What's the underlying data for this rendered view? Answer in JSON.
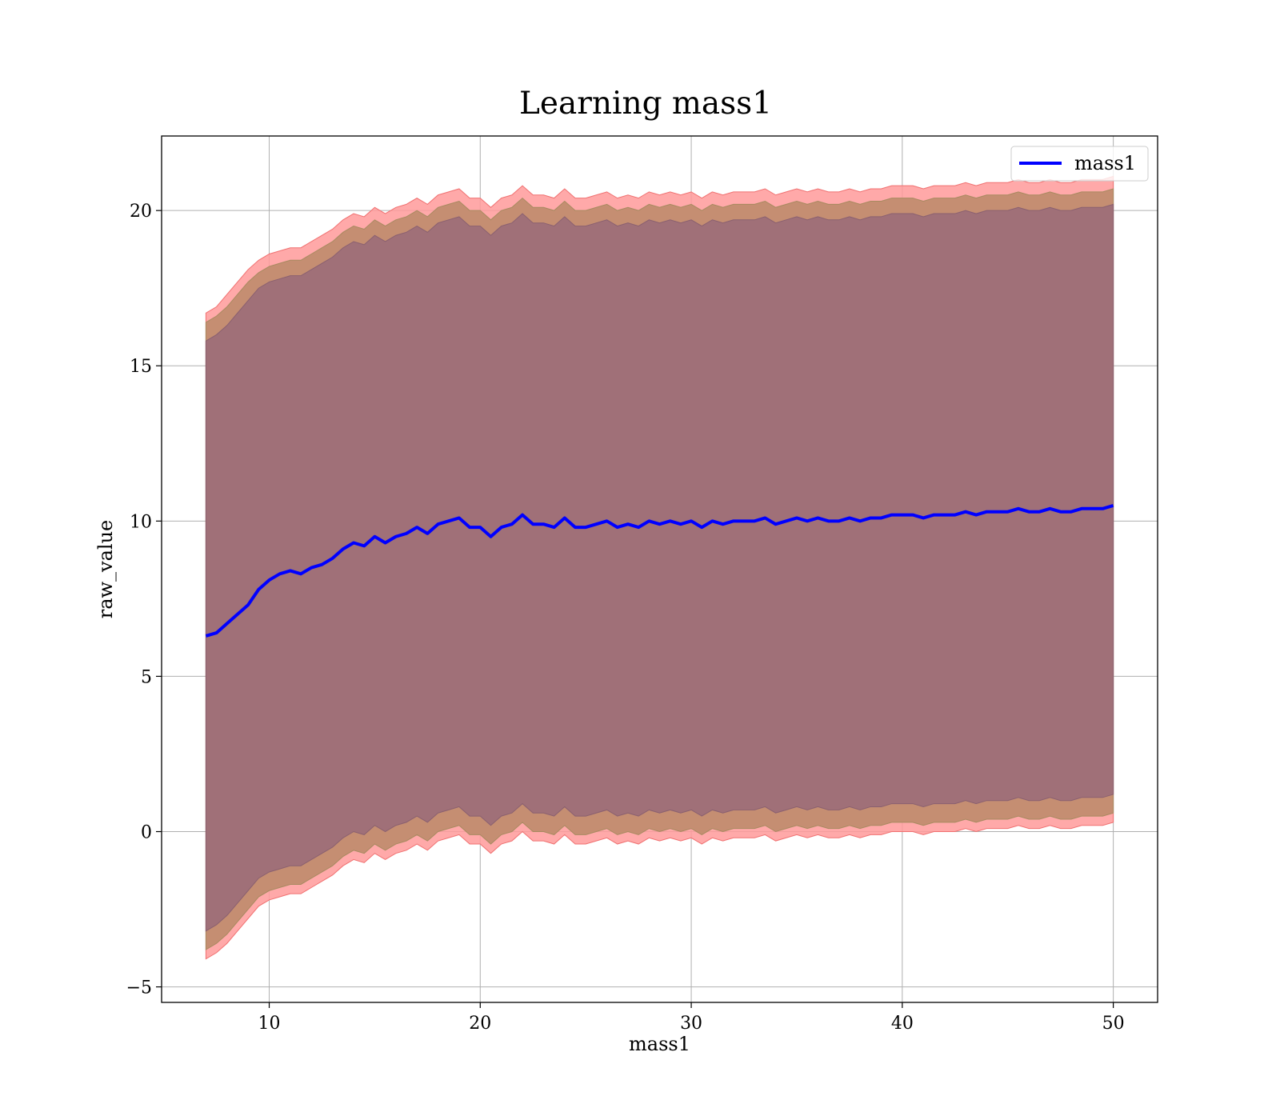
{
  "chart_data": {
    "type": "line",
    "title": "Learning mass1",
    "xlabel": "mass1",
    "ylabel": "raw_value",
    "xlim": [
      4.9,
      52.1
    ],
    "ylim": [
      -5.5,
      22.4
    ],
    "x_ticks": [
      10,
      20,
      30,
      40,
      50
    ],
    "y_ticks": [
      -5,
      0,
      5,
      10,
      15,
      20
    ],
    "x_tick_labels": [
      "10",
      "20",
      "30",
      "40",
      "50"
    ],
    "y_tick_labels": [
      "−5",
      "0",
      "5",
      "10",
      "15",
      "20"
    ],
    "grid": true,
    "legend_position": "top-right",
    "colors": {
      "line": "#0000ff",
      "band_outer": "#ff9a9a",
      "band_middle": "#c58e72",
      "band_inner": "#a07078",
      "grid": "#b0b0b0"
    },
    "x": [
      7,
      7.5,
      8,
      8.5,
      9,
      9.5,
      10,
      10.5,
      11,
      11.5,
      12,
      12.5,
      13,
      13.5,
      14,
      14.5,
      15,
      15.5,
      16,
      16.5,
      17,
      17.5,
      18,
      18.5,
      19,
      19.5,
      20,
      20.5,
      21,
      21.5,
      22,
      22.5,
      23,
      23.5,
      24,
      24.5,
      25,
      25.5,
      26,
      26.5,
      27,
      27.5,
      28,
      28.5,
      29,
      29.5,
      30,
      30.5,
      31,
      31.5,
      32,
      32.5,
      33,
      33.5,
      34,
      34.5,
      35,
      35.5,
      36,
      36.5,
      37,
      37.5,
      38,
      38.5,
      39,
      39.5,
      40,
      40.5,
      41,
      41.5,
      42,
      42.5,
      43,
      43.5,
      44,
      44.5,
      45,
      45.5,
      46,
      46.5,
      47,
      47.5,
      48,
      48.5,
      49,
      49.5,
      50
    ],
    "series": [
      {
        "name": "mass1",
        "values": [
          6.3,
          6.4,
          6.7,
          7.0,
          7.3,
          7.8,
          8.1,
          8.3,
          8.4,
          8.3,
          8.5,
          8.6,
          8.8,
          9.1,
          9.3,
          9.2,
          9.5,
          9.3,
          9.5,
          9.6,
          9.8,
          9.6,
          9.9,
          10.0,
          10.1,
          9.8,
          9.8,
          9.5,
          9.8,
          9.9,
          10.2,
          9.9,
          9.9,
          9.8,
          10.1,
          9.8,
          9.8,
          9.9,
          10.0,
          9.8,
          9.9,
          9.8,
          10.0,
          9.9,
          10.0,
          9.9,
          10.0,
          9.8,
          10.0,
          9.9,
          10.0,
          10.0,
          10.0,
          10.1,
          9.9,
          10.0,
          10.1,
          10.0,
          10.1,
          10.0,
          10.0,
          10.1,
          10.0,
          10.1,
          10.1,
          10.2,
          10.2,
          10.2,
          10.1,
          10.2,
          10.2,
          10.2,
          10.3,
          10.2,
          10.3,
          10.3,
          10.3,
          10.4,
          10.3,
          10.3,
          10.4,
          10.3,
          10.3,
          10.4,
          10.4,
          10.4,
          10.5
        ]
      }
    ],
    "bands": {
      "outer_upper": [
        16.7,
        16.9,
        17.3,
        17.7,
        18.1,
        18.4,
        18.6,
        18.7,
        18.8,
        18.8,
        19.0,
        19.2,
        19.4,
        19.7,
        19.9,
        19.8,
        20.1,
        19.9,
        20.1,
        20.2,
        20.4,
        20.2,
        20.5,
        20.6,
        20.7,
        20.4,
        20.4,
        20.1,
        20.4,
        20.5,
        20.8,
        20.5,
        20.5,
        20.4,
        20.7,
        20.4,
        20.4,
        20.5,
        20.6,
        20.4,
        20.5,
        20.4,
        20.6,
        20.5,
        20.6,
        20.5,
        20.6,
        20.4,
        20.6,
        20.5,
        20.6,
        20.6,
        20.6,
        20.7,
        20.5,
        20.6,
        20.7,
        20.6,
        20.7,
        20.6,
        20.6,
        20.7,
        20.6,
        20.7,
        20.7,
        20.8,
        20.8,
        20.8,
        20.7,
        20.8,
        20.8,
        20.8,
        20.9,
        20.8,
        20.9,
        20.9,
        20.9,
        21.0,
        20.9,
        20.9,
        21.0,
        20.9,
        20.9,
        21.0,
        21.0,
        21.0,
        21.1
      ],
      "middle_upper": [
        16.4,
        16.6,
        16.9,
        17.3,
        17.7,
        18.0,
        18.2,
        18.3,
        18.4,
        18.4,
        18.6,
        18.8,
        19.0,
        19.3,
        19.5,
        19.4,
        19.7,
        19.5,
        19.7,
        19.8,
        20.0,
        19.8,
        20.1,
        20.2,
        20.3,
        20.0,
        20.0,
        19.7,
        20.0,
        20.1,
        20.4,
        20.1,
        20.1,
        20.0,
        20.3,
        20.0,
        20.0,
        20.1,
        20.2,
        20.0,
        20.1,
        20.0,
        20.2,
        20.1,
        20.2,
        20.1,
        20.2,
        20.0,
        20.2,
        20.1,
        20.2,
        20.2,
        20.2,
        20.3,
        20.1,
        20.2,
        20.3,
        20.2,
        20.3,
        20.2,
        20.2,
        20.3,
        20.2,
        20.3,
        20.3,
        20.4,
        20.4,
        20.4,
        20.3,
        20.4,
        20.4,
        20.4,
        20.5,
        20.4,
        20.5,
        20.5,
        20.5,
        20.6,
        20.5,
        20.5,
        20.6,
        20.5,
        20.5,
        20.6,
        20.6,
        20.6,
        20.7
      ],
      "inner_upper": [
        15.8,
        16.0,
        16.3,
        16.7,
        17.1,
        17.5,
        17.7,
        17.8,
        17.9,
        17.9,
        18.1,
        18.3,
        18.5,
        18.8,
        19.0,
        18.9,
        19.2,
        19.0,
        19.2,
        19.3,
        19.5,
        19.3,
        19.6,
        19.7,
        19.8,
        19.5,
        19.5,
        19.2,
        19.5,
        19.6,
        19.9,
        19.6,
        19.6,
        19.5,
        19.8,
        19.5,
        19.5,
        19.6,
        19.7,
        19.5,
        19.6,
        19.5,
        19.7,
        19.6,
        19.7,
        19.6,
        19.7,
        19.5,
        19.7,
        19.6,
        19.7,
        19.7,
        19.7,
        19.8,
        19.6,
        19.7,
        19.8,
        19.7,
        19.8,
        19.7,
        19.7,
        19.8,
        19.7,
        19.8,
        19.8,
        19.9,
        19.9,
        19.9,
        19.8,
        19.9,
        19.9,
        19.9,
        20.0,
        19.9,
        20.0,
        20.0,
        20.0,
        20.1,
        20.0,
        20.0,
        20.1,
        20.0,
        20.0,
        20.1,
        20.1,
        20.1,
        20.2
      ],
      "inner_lower": [
        -3.2,
        -3.0,
        -2.7,
        -2.3,
        -1.9,
        -1.5,
        -1.3,
        -1.2,
        -1.1,
        -1.1,
        -0.9,
        -0.7,
        -0.5,
        -0.2,
        0.0,
        -0.1,
        0.2,
        0.0,
        0.2,
        0.3,
        0.5,
        0.3,
        0.6,
        0.7,
        0.8,
        0.5,
        0.5,
        0.2,
        0.5,
        0.6,
        0.9,
        0.6,
        0.6,
        0.5,
        0.8,
        0.5,
        0.5,
        0.6,
        0.7,
        0.5,
        0.6,
        0.5,
        0.7,
        0.6,
        0.7,
        0.6,
        0.7,
        0.5,
        0.7,
        0.6,
        0.7,
        0.7,
        0.7,
        0.8,
        0.6,
        0.7,
        0.8,
        0.7,
        0.8,
        0.7,
        0.7,
        0.8,
        0.7,
        0.8,
        0.8,
        0.9,
        0.9,
        0.9,
        0.8,
        0.9,
        0.9,
        0.9,
        1.0,
        0.9,
        1.0,
        1.0,
        1.0,
        1.1,
        1.0,
        1.0,
        1.1,
        1.0,
        1.0,
        1.1,
        1.1,
        1.1,
        1.2
      ],
      "middle_lower": [
        -3.8,
        -3.6,
        -3.3,
        -2.9,
        -2.5,
        -2.1,
        -1.9,
        -1.8,
        -1.7,
        -1.7,
        -1.5,
        -1.3,
        -1.1,
        -0.8,
        -0.6,
        -0.7,
        -0.4,
        -0.6,
        -0.4,
        -0.3,
        -0.1,
        -0.3,
        0.0,
        0.1,
        0.2,
        -0.1,
        -0.1,
        -0.4,
        -0.1,
        0.0,
        0.3,
        0.0,
        0.0,
        -0.1,
        0.2,
        -0.1,
        -0.1,
        0.0,
        0.1,
        -0.1,
        0.0,
        -0.1,
        0.1,
        0.0,
        0.1,
        0.0,
        0.1,
        -0.1,
        0.1,
        0.0,
        0.1,
        0.1,
        0.1,
        0.2,
        0.0,
        0.1,
        0.2,
        0.1,
        0.2,
        0.1,
        0.1,
        0.2,
        0.1,
        0.2,
        0.2,
        0.3,
        0.3,
        0.3,
        0.2,
        0.3,
        0.3,
        0.3,
        0.4,
        0.3,
        0.4,
        0.4,
        0.4,
        0.5,
        0.4,
        0.4,
        0.5,
        0.4,
        0.4,
        0.5,
        0.5,
        0.5,
        0.6
      ],
      "outer_lower": [
        -4.1,
        -3.9,
        -3.6,
        -3.2,
        -2.8,
        -2.4,
        -2.2,
        -2.1,
        -2.0,
        -2.0,
        -1.8,
        -1.6,
        -1.4,
        -1.1,
        -0.9,
        -1.0,
        -0.7,
        -0.9,
        -0.7,
        -0.6,
        -0.4,
        -0.6,
        -0.3,
        -0.2,
        -0.1,
        -0.4,
        -0.4,
        -0.7,
        -0.4,
        -0.3,
        0.0,
        -0.3,
        -0.3,
        -0.4,
        -0.1,
        -0.4,
        -0.4,
        -0.3,
        -0.2,
        -0.4,
        -0.3,
        -0.4,
        -0.2,
        -0.3,
        -0.2,
        -0.3,
        -0.2,
        -0.4,
        -0.2,
        -0.3,
        -0.2,
        -0.2,
        -0.2,
        -0.1,
        -0.3,
        -0.2,
        -0.1,
        -0.2,
        -0.1,
        -0.2,
        -0.2,
        -0.1,
        -0.2,
        -0.1,
        -0.1,
        0.0,
        0.0,
        0.0,
        -0.1,
        0.0,
        0.0,
        0.0,
        0.1,
        0.0,
        0.1,
        0.1,
        0.1,
        0.2,
        0.1,
        0.1,
        0.2,
        0.1,
        0.1,
        0.2,
        0.2,
        0.2,
        0.3
      ]
    }
  }
}
